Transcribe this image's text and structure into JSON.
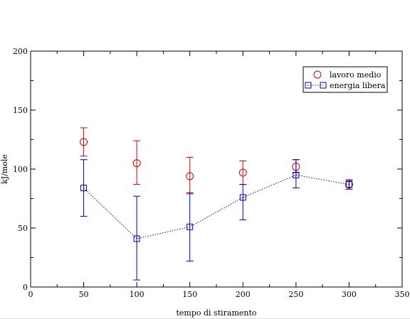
{
  "chart_data": {
    "type": "scatter",
    "xlabel": "tempo di stiramento",
    "ylabel": "kJ/mole",
    "xlim": [
      0,
      350
    ],
    "ylim": [
      0,
      200
    ],
    "xticks": [
      0,
      50,
      100,
      150,
      200,
      250,
      300,
      350
    ],
    "yticks": [
      0,
      50,
      100,
      150,
      200
    ],
    "x_tick_labels": [
      "0",
      "50",
      "100",
      "150",
      "200",
      "250",
      "300",
      "350"
    ],
    "y_tick_labels": [
      "0",
      "50",
      "100",
      "150",
      "200"
    ],
    "grid": false,
    "legend_position": "top-right",
    "series": [
      {
        "name": "lavoro medio",
        "color": "#cc0000",
        "marker": "circle",
        "line": "none",
        "x": [
          50,
          100,
          150,
          200,
          250,
          300
        ],
        "y": [
          123,
          105,
          94,
          97,
          102,
          87
        ],
        "err_low": [
          111,
          87,
          79,
          87,
          97,
          83
        ],
        "err_high": [
          135,
          124,
          110,
          107,
          108,
          90
        ]
      },
      {
        "name": "energia libera",
        "color": "#0000aa",
        "marker": "square",
        "line": "dotted",
        "x": [
          50,
          100,
          150,
          200,
          250,
          300
        ],
        "y": [
          84,
          41,
          51,
          76,
          95,
          87
        ],
        "err_low": [
          60,
          6,
          22,
          57,
          84,
          83
        ],
        "err_high": [
          108,
          77,
          80,
          87,
          108,
          91
        ]
      }
    ]
  }
}
